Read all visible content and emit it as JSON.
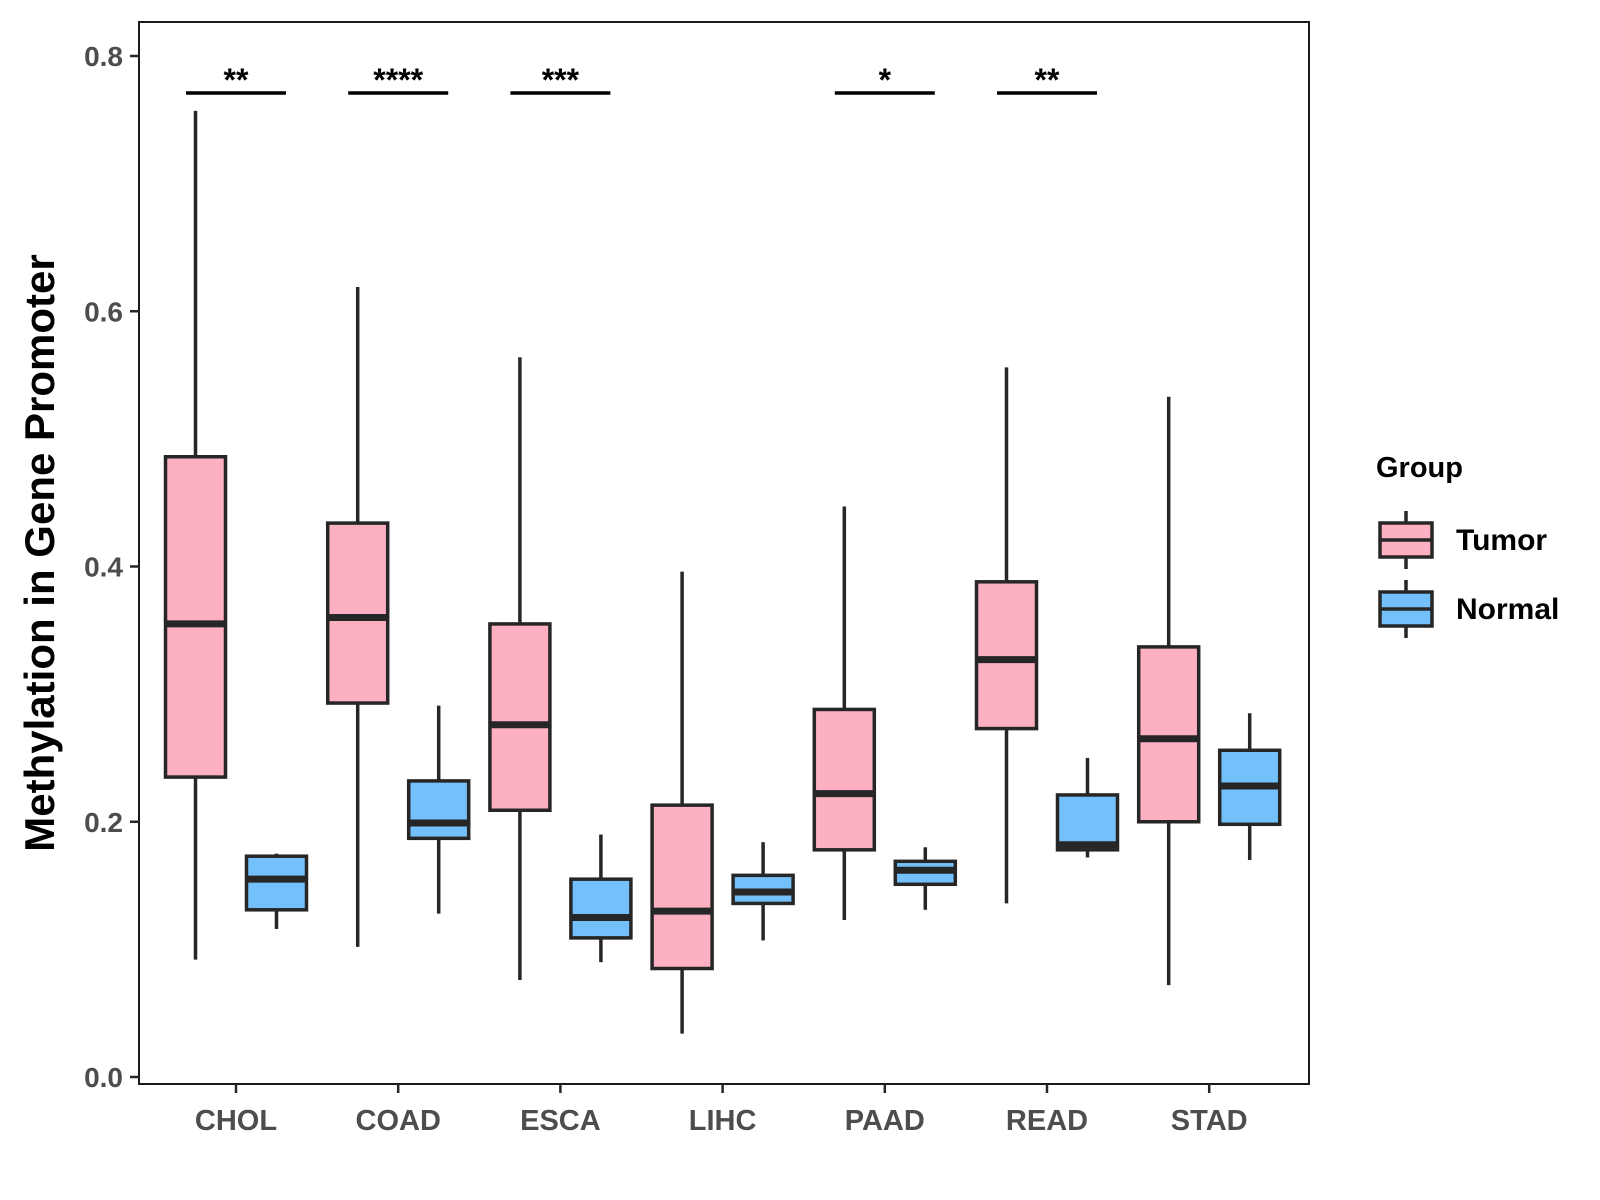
{
  "chart_data": {
    "type": "boxplot",
    "title": "",
    "xlabel": "",
    "ylabel": "Methylation in Gene Promoter",
    "ylim": [
      0.0,
      0.82
    ],
    "yticks": [
      "0.0",
      "0.2",
      "0.4",
      "0.6",
      "0.8"
    ],
    "grid": false,
    "legend_position": "right",
    "categories": [
      "CHOL",
      "COAD",
      "ESCA",
      "LIHC",
      "PAAD",
      "READ",
      "STAD"
    ],
    "legend": {
      "title": "Group",
      "entries": [
        {
          "name": "Tumor",
          "color": "#fcb0c1"
        },
        {
          "name": "Normal",
          "color": "#74c0fa"
        }
      ]
    },
    "series": [
      {
        "name": "Tumor",
        "color": "#fcb0c1",
        "boxes": [
          {
            "min": 0.092,
            "q1": 0.235,
            "median": 0.355,
            "q3": 0.486,
            "max": 0.757
          },
          {
            "min": 0.102,
            "q1": 0.293,
            "median": 0.36,
            "q3": 0.434,
            "max": 0.619
          },
          {
            "min": 0.076,
            "q1": 0.209,
            "median": 0.276,
            "q3": 0.355,
            "max": 0.564
          },
          {
            "min": 0.034,
            "q1": 0.085,
            "median": 0.13,
            "q3": 0.213,
            "max": 0.396
          },
          {
            "min": 0.123,
            "q1": 0.178,
            "median": 0.222,
            "q3": 0.288,
            "max": 0.447
          },
          {
            "min": 0.136,
            "q1": 0.273,
            "median": 0.327,
            "q3": 0.388,
            "max": 0.556
          },
          {
            "min": 0.072,
            "q1": 0.2,
            "median": 0.265,
            "q3": 0.337,
            "max": 0.533
          }
        ]
      },
      {
        "name": "Normal",
        "color": "#74c0fa",
        "boxes": [
          {
            "min": 0.116,
            "q1": 0.131,
            "median": 0.155,
            "q3": 0.173,
            "max": 0.175
          },
          {
            "min": 0.128,
            "q1": 0.187,
            "median": 0.199,
            "q3": 0.232,
            "max": 0.291
          },
          {
            "min": 0.09,
            "q1": 0.109,
            "median": 0.125,
            "q3": 0.155,
            "max": 0.19
          },
          {
            "min": 0.107,
            "q1": 0.136,
            "median": 0.145,
            "q3": 0.158,
            "max": 0.184
          },
          {
            "min": 0.131,
            "q1": 0.151,
            "median": 0.162,
            "q3": 0.169,
            "max": 0.18
          },
          {
            "min": 0.172,
            "q1": 0.178,
            "median": 0.182,
            "q3": 0.221,
            "max": 0.25
          },
          {
            "min": 0.17,
            "q1": 0.198,
            "median": 0.228,
            "q3": 0.256,
            "max": 0.285
          }
        ]
      }
    ],
    "significance": [
      {
        "category": "CHOL",
        "label": "**",
        "y": 0.771
      },
      {
        "category": "COAD",
        "label": "****",
        "y": 0.771
      },
      {
        "category": "ESCA",
        "label": "***",
        "y": 0.771
      },
      {
        "category": "PAAD",
        "label": "*",
        "y": 0.771
      },
      {
        "category": "READ",
        "label": "**",
        "y": 0.771
      }
    ]
  }
}
